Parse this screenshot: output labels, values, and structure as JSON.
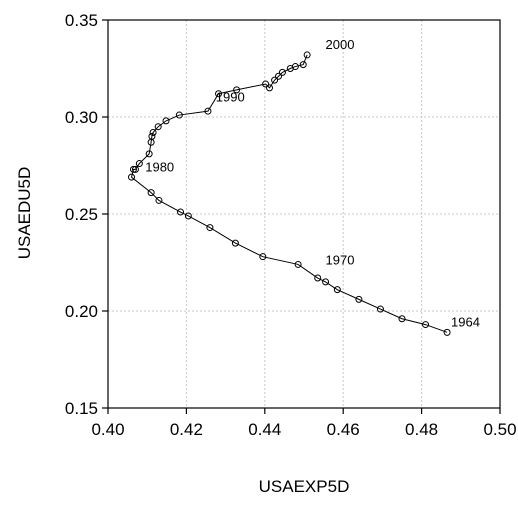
{
  "chart_data": {
    "type": "line",
    "title": "",
    "xlabel": "USAEXP5D",
    "ylabel": "USAEDU5D",
    "xlim": [
      0.4,
      0.5
    ],
    "ylim": [
      0.15,
      0.35
    ],
    "grid": true,
    "x_ticks": [
      0.4,
      0.42,
      0.44,
      0.46,
      0.48,
      0.5
    ],
    "y_ticks": [
      0.15,
      0.2,
      0.25,
      0.3,
      0.35
    ],
    "x_tick_labels": [
      "0.40",
      "0.42",
      "0.44",
      "0.46",
      "0.48",
      "0.50"
    ],
    "y_tick_labels": [
      "0.15",
      "0.20",
      "0.25",
      "0.30",
      "0.35"
    ],
    "series": [
      {
        "x": [
          0.4865,
          0.481,
          0.475,
          0.4695,
          0.464,
          0.4585,
          0.4555,
          0.4535,
          0.4485,
          0.4395,
          0.4325,
          0.426,
          0.4205,
          0.4185,
          0.413,
          0.411,
          0.406,
          0.4065,
          0.407,
          0.408,
          0.4105,
          0.411,
          0.4112,
          0.4115,
          0.4128,
          0.4148,
          0.4182,
          0.4255,
          0.4282,
          0.4328,
          0.4402,
          0.4412,
          0.4425,
          0.4435,
          0.4445,
          0.4465,
          0.4478,
          0.4498,
          0.4508
        ],
        "y": [
          0.189,
          0.193,
          0.196,
          0.201,
          0.206,
          0.211,
          0.215,
          0.217,
          0.224,
          0.228,
          0.235,
          0.243,
          0.249,
          0.251,
          0.257,
          0.261,
          0.269,
          0.273,
          0.273,
          0.276,
          0.281,
          0.287,
          0.29,
          0.292,
          0.295,
          0.298,
          0.301,
          0.303,
          0.312,
          0.314,
          0.317,
          0.315,
          0.319,
          0.321,
          0.323,
          0.325,
          0.326,
          0.327,
          0.332
        ]
      }
    ],
    "annotations": [
      {
        "text": "1964",
        "x": 0.4875,
        "y": 0.192
      },
      {
        "text": "1970",
        "x": 0.4555,
        "y": 0.224
      },
      {
        "text": "1980",
        "x": 0.4095,
        "y": 0.272
      },
      {
        "text": "1990",
        "x": 0.4275,
        "y": 0.308
      },
      {
        "text": "2000",
        "x": 0.4555,
        "y": 0.335
      }
    ]
  }
}
